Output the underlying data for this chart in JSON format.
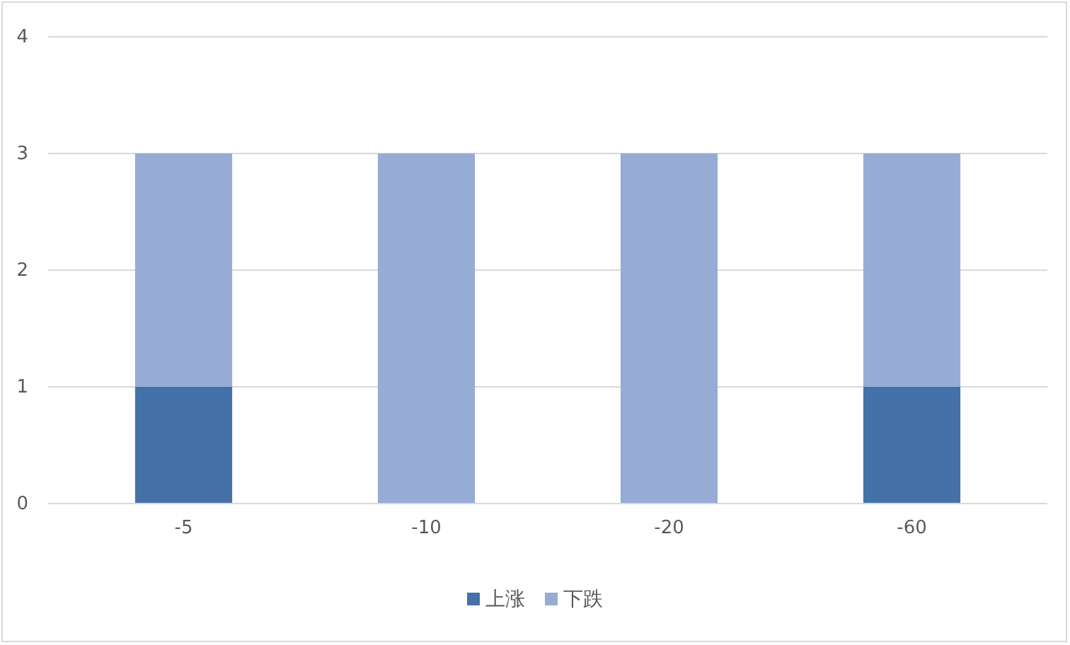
{
  "chart_data": {
    "type": "bar",
    "stacked": true,
    "categories": [
      "-5",
      "-10",
      "-20",
      "-60"
    ],
    "series": [
      {
        "name": "上涨",
        "color": "#4472a8",
        "values": [
          1,
          0,
          0,
          1
        ]
      },
      {
        "name": "下跌",
        "color": "#96acd4",
        "values": [
          2,
          3,
          3,
          2
        ]
      }
    ],
    "ylim": [
      0,
      4
    ],
    "yticks": [
      0,
      1,
      2,
      3,
      4
    ],
    "grid": "y",
    "legend": "bottom"
  }
}
